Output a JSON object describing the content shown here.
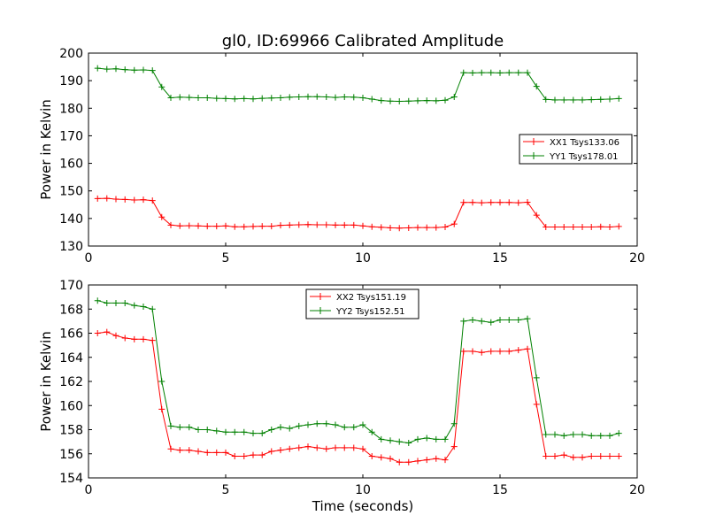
{
  "title": "gl0, ID:69966 Calibrated Amplitude",
  "colors": {
    "red": "#ff0000",
    "green": "#008000"
  },
  "chart_data": [
    {
      "type": "line",
      "xlabel": "",
      "ylabel": "Power in Kelvin",
      "xlim": [
        0,
        20
      ],
      "ylim": [
        130,
        200
      ],
      "xticks": [
        0,
        5,
        10,
        15,
        20
      ],
      "yticks": [
        130,
        140,
        150,
        160,
        170,
        180,
        190,
        200
      ],
      "grid": false,
      "legend_position": "center-right",
      "x": [
        0.33,
        0.67,
        1.0,
        1.33,
        1.67,
        2.0,
        2.33,
        2.67,
        3.0,
        3.33,
        3.67,
        4.0,
        4.33,
        4.67,
        5.0,
        5.33,
        5.67,
        6.0,
        6.33,
        6.67,
        7.0,
        7.33,
        7.67,
        8.0,
        8.33,
        8.67,
        9.0,
        9.33,
        9.67,
        10.0,
        10.33,
        10.67,
        11.0,
        11.33,
        11.67,
        12.0,
        12.33,
        12.67,
        13.0,
        13.33,
        13.67,
        14.0,
        14.33,
        14.67,
        15.0,
        15.33,
        15.67,
        16.0,
        16.33,
        16.67,
        17.0,
        17.33,
        17.67,
        18.0,
        18.33,
        18.67,
        19.0,
        19.33
      ],
      "series": [
        {
          "name": "XX1 Tsys133.06",
          "color": "#ff0000",
          "values": [
            147.2,
            147.3,
            147.0,
            146.9,
            146.7,
            146.8,
            146.5,
            140.5,
            137.6,
            137.3,
            137.4,
            137.3,
            137.2,
            137.2,
            137.3,
            137.0,
            137.0,
            137.1,
            137.2,
            137.2,
            137.5,
            137.6,
            137.7,
            137.8,
            137.7,
            137.7,
            137.6,
            137.6,
            137.6,
            137.3,
            137.0,
            136.8,
            136.6,
            136.5,
            136.6,
            136.7,
            136.7,
            136.7,
            136.9,
            138.0,
            145.8,
            145.8,
            145.7,
            145.8,
            145.8,
            145.8,
            145.7,
            145.9,
            141.2,
            136.9,
            136.9,
            136.9,
            136.9,
            136.9,
            136.9,
            137.0,
            136.9,
            137.1
          ]
        },
        {
          "name": "YY1 Tsys178.01",
          "color": "#008000",
          "values": [
            194.5,
            194.2,
            194.3,
            194.0,
            193.8,
            193.9,
            193.7,
            187.7,
            183.8,
            184.0,
            183.9,
            183.8,
            183.8,
            183.6,
            183.5,
            183.4,
            183.5,
            183.4,
            183.6,
            183.7,
            183.8,
            184.0,
            184.1,
            184.2,
            184.2,
            184.1,
            183.9,
            184.1,
            184.0,
            183.8,
            183.3,
            182.8,
            182.6,
            182.5,
            182.6,
            182.7,
            182.8,
            182.7,
            182.9,
            184.1,
            192.9,
            192.8,
            192.9,
            192.9,
            192.8,
            192.9,
            192.9,
            192.9,
            187.9,
            183.2,
            183.0,
            183.0,
            183.0,
            183.0,
            183.1,
            183.2,
            183.3,
            183.5
          ]
        }
      ]
    },
    {
      "type": "line",
      "xlabel": "Time (seconds)",
      "ylabel": "Power in Kelvin",
      "xlim": [
        0,
        20
      ],
      "ylim": [
        154,
        170
      ],
      "xticks": [
        0,
        5,
        10,
        15,
        20
      ],
      "yticks": [
        154,
        156,
        158,
        160,
        162,
        164,
        166,
        168,
        170
      ],
      "grid": false,
      "legend_position": "top-center",
      "x": [
        0.33,
        0.67,
        1.0,
        1.33,
        1.67,
        2.0,
        2.33,
        2.67,
        3.0,
        3.33,
        3.67,
        4.0,
        4.33,
        4.67,
        5.0,
        5.33,
        5.67,
        6.0,
        6.33,
        6.67,
        7.0,
        7.33,
        7.67,
        8.0,
        8.33,
        8.67,
        9.0,
        9.33,
        9.67,
        10.0,
        10.33,
        10.67,
        11.0,
        11.33,
        11.67,
        12.0,
        12.33,
        12.67,
        13.0,
        13.33,
        13.67,
        14.0,
        14.33,
        14.67,
        15.0,
        15.33,
        15.67,
        16.0,
        16.33,
        16.67,
        17.0,
        17.33,
        17.67,
        18.0,
        18.33,
        18.67,
        19.0,
        19.33
      ],
      "series": [
        {
          "name": "XX2 Tsys151.19",
          "color": "#ff0000",
          "values": [
            166.0,
            166.1,
            165.8,
            165.6,
            165.5,
            165.5,
            165.4,
            159.7,
            156.4,
            156.3,
            156.3,
            156.2,
            156.1,
            156.1,
            156.1,
            155.8,
            155.8,
            155.9,
            155.9,
            156.2,
            156.3,
            156.4,
            156.5,
            156.6,
            156.5,
            156.4,
            156.5,
            156.5,
            156.5,
            156.4,
            155.8,
            155.7,
            155.6,
            155.3,
            155.3,
            155.4,
            155.5,
            155.6,
            155.5,
            156.6,
            164.5,
            164.5,
            164.4,
            164.5,
            164.5,
            164.5,
            164.6,
            164.7,
            160.1,
            155.8,
            155.8,
            155.9,
            155.7,
            155.7,
            155.8,
            155.8,
            155.8,
            155.8
          ]
        },
        {
          "name": "YY2 Tsys152.51",
          "color": "#008000",
          "values": [
            168.7,
            168.5,
            168.5,
            168.5,
            168.3,
            168.2,
            168.0,
            162.0,
            158.3,
            158.2,
            158.2,
            158.0,
            158.0,
            157.9,
            157.8,
            157.8,
            157.8,
            157.7,
            157.7,
            158.0,
            158.2,
            158.1,
            158.3,
            158.4,
            158.5,
            158.5,
            158.4,
            158.2,
            158.2,
            158.4,
            157.8,
            157.2,
            157.1,
            157.0,
            156.9,
            157.2,
            157.3,
            157.2,
            157.2,
            158.5,
            167.0,
            167.1,
            167.0,
            166.9,
            167.1,
            167.1,
            167.1,
            167.2,
            162.3,
            157.6,
            157.6,
            157.5,
            157.6,
            157.6,
            157.5,
            157.5,
            157.5,
            157.7
          ]
        }
      ]
    }
  ]
}
